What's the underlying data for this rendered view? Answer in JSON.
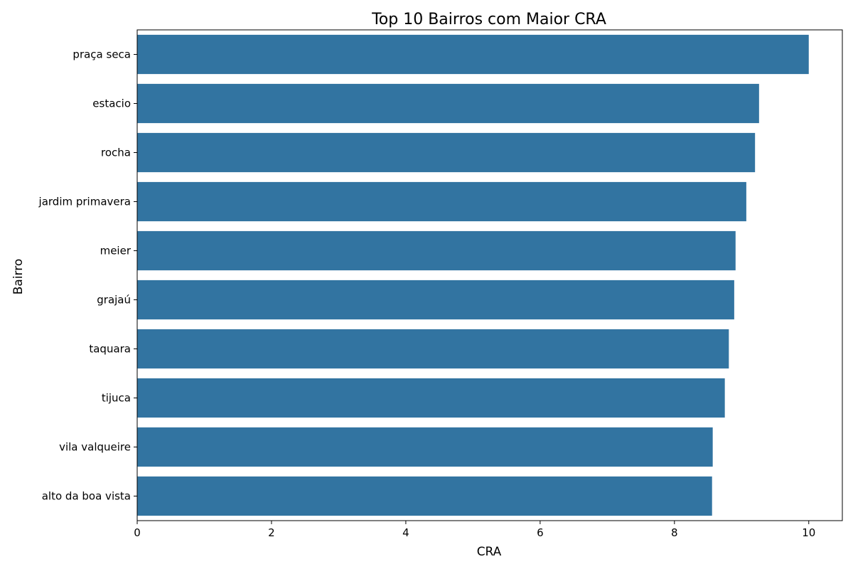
{
  "chart_data": {
    "type": "bar",
    "orientation": "horizontal",
    "title": "Top 10 Bairros com Maior CRA",
    "xlabel": "CRA",
    "ylabel": "Bairro",
    "categories": [
      "praça seca",
      "estacio",
      "rocha",
      "jardim primavera",
      "meier",
      "grajaú",
      "taquara",
      "tijuca",
      "vila valqueire",
      "alto da boa vista"
    ],
    "values": [
      10.0,
      9.26,
      9.2,
      9.07,
      8.91,
      8.89,
      8.81,
      8.75,
      8.57,
      8.56
    ],
    "xlim": [
      0,
      10.5
    ],
    "xticks": [
      0,
      2,
      4,
      6,
      8,
      10
    ],
    "grid": false,
    "bar_color": "#3274a1"
  }
}
